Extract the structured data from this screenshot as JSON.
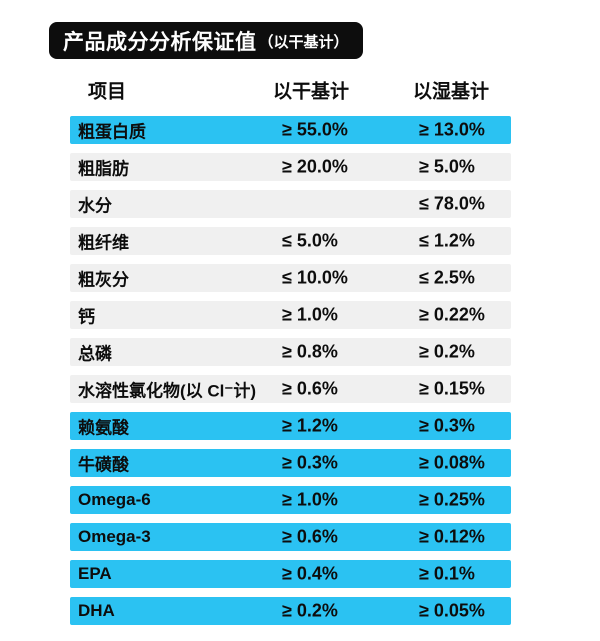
{
  "banner": {
    "title": "产品成分分析保证值",
    "subtitle": "（以干基计）"
  },
  "table": {
    "columns": [
      "项目",
      "以干基计",
      "以湿基计"
    ],
    "rows": [
      {
        "name": "粗蛋白质",
        "dry": "≥ 55.0%",
        "wet": "≥ 13.0%",
        "highlight": true
      },
      {
        "name": "粗脂肪",
        "dry": "≥ 20.0%",
        "wet": "≥ 5.0%",
        "highlight": false
      },
      {
        "name": "水分",
        "dry": "",
        "wet": "≤ 78.0%",
        "highlight": false
      },
      {
        "name": "粗纤维",
        "dry": "≤ 5.0%",
        "wet": "≤ 1.2%",
        "highlight": false
      },
      {
        "name": "粗灰分",
        "dry": "≤ 10.0%",
        "wet": "≤ 2.5%",
        "highlight": false
      },
      {
        "name": "钙",
        "dry": "≥ 1.0%",
        "wet": "≥ 0.22%",
        "highlight": false
      },
      {
        "name": "总磷",
        "dry": "≥ 0.8%",
        "wet": "≥ 0.2%",
        "highlight": false
      },
      {
        "name": "水溶性氯化物(以 Cl⁻计)",
        "dry": "≥ 0.6%",
        "wet": "≥ 0.15%",
        "highlight": false
      },
      {
        "name": "赖氨酸",
        "dry": "≥ 1.2%",
        "wet": "≥ 0.3%",
        "highlight": true
      },
      {
        "name": "牛磺酸",
        "dry": "≥ 0.3%",
        "wet": "≥ 0.08%",
        "highlight": true
      },
      {
        "name": "Omega-6",
        "dry": "≥ 1.0%",
        "wet": "≥ 0.25%",
        "highlight": true
      },
      {
        "name": "Omega-3",
        "dry": "≥ 0.6%",
        "wet": "≥ 0.12%",
        "highlight": true
      },
      {
        "name": "EPA",
        "dry": "≥ 0.4%",
        "wet": "≥ 0.1%",
        "highlight": true
      },
      {
        "name": "DHA",
        "dry": "≥ 0.2%",
        "wet": "≥ 0.05%",
        "highlight": true
      }
    ]
  },
  "colors": {
    "highlight_cyan": "#2bc2f2",
    "row_gray": "#f0f0f0",
    "banner_black": "#0d0d0d",
    "text_black": "#0d0d0d"
  }
}
